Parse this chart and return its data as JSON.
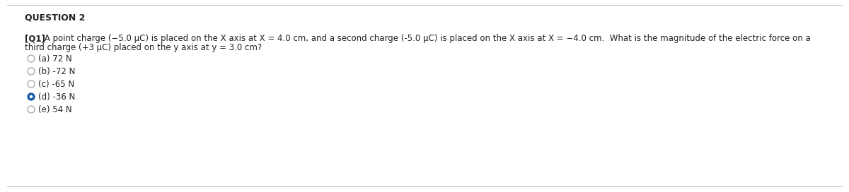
{
  "title": "QUESTION 2",
  "q_label": "[Q1]",
  "q_line1_after_label": " A point charge (−5.0 μC) is placed on the X axis at X = 4.0 cm, and a second charge (-5.0 μC) is placed on the X axis at X = −4.0 cm.  What is the magnitude of the electric force on a",
  "q_line2": "third charge (+3 μC) placed on the y axis at y = 3.0 cm?",
  "options": [
    "(a) 72 N",
    "(b) -72 N",
    "(c) -65 N",
    "(d) -36 N",
    "(e) 54 N"
  ],
  "selected_index": 3,
  "bg_color": "#ffffff",
  "title_color": "#222222",
  "text_color": "#222222",
  "option_color": "#222222",
  "selected_fill_color": "#1a5fa8",
  "selected_edge_color": "#1a5fa8",
  "unselected_edge_color": "#aaaaaa",
  "line_color": "#cccccc",
  "title_fontsize": 9.0,
  "question_fontsize": 8.5,
  "option_fontsize": 8.5,
  "fig_width": 12.0,
  "fig_height": 2.72,
  "dpi": 100
}
